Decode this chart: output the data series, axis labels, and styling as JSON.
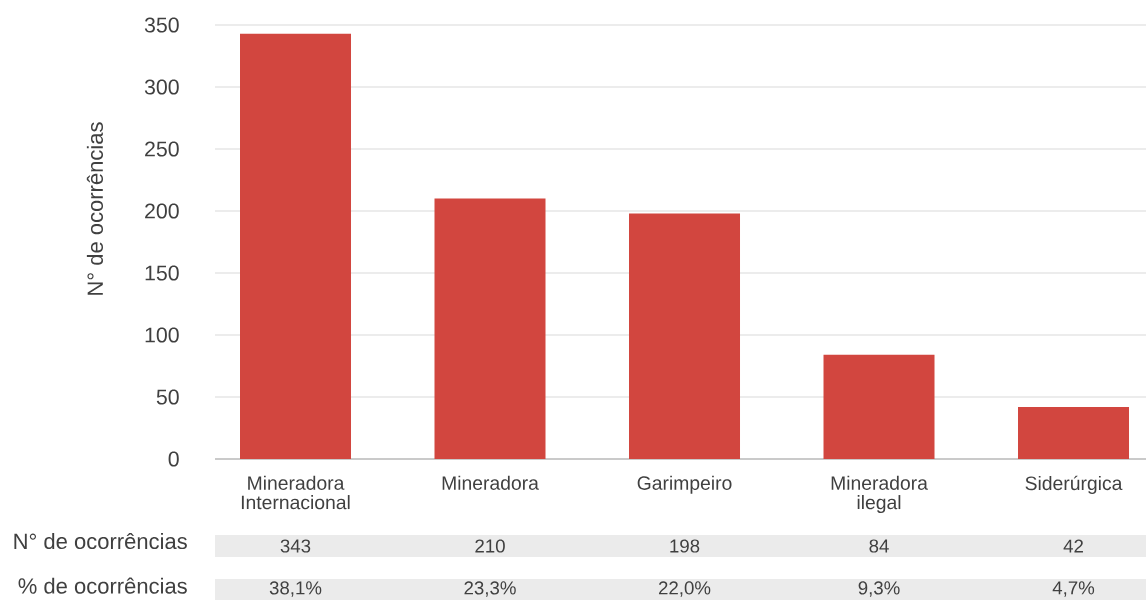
{
  "chart_data": {
    "type": "bar",
    "ylabel": "N° de ocorrências",
    "categories": [
      "Mineradora Internacional",
      "Mineradora",
      "Garimpeiro",
      "Mineradora ilegal",
      "Siderúrgica"
    ],
    "values": [
      343,
      210,
      198,
      84,
      42
    ],
    "color": "#d2463f",
    "ylim": [
      0,
      350
    ],
    "yticks": [
      0,
      50,
      100,
      150,
      200,
      250,
      300,
      350
    ],
    "grid": "y",
    "data_labels": true,
    "annotations": [
      "N° de ocorrências",
      "% de ocorrências",
      "38,1%",
      "23,3%",
      "22,0%",
      "9,3%",
      "4,7%"
    ]
  }
}
